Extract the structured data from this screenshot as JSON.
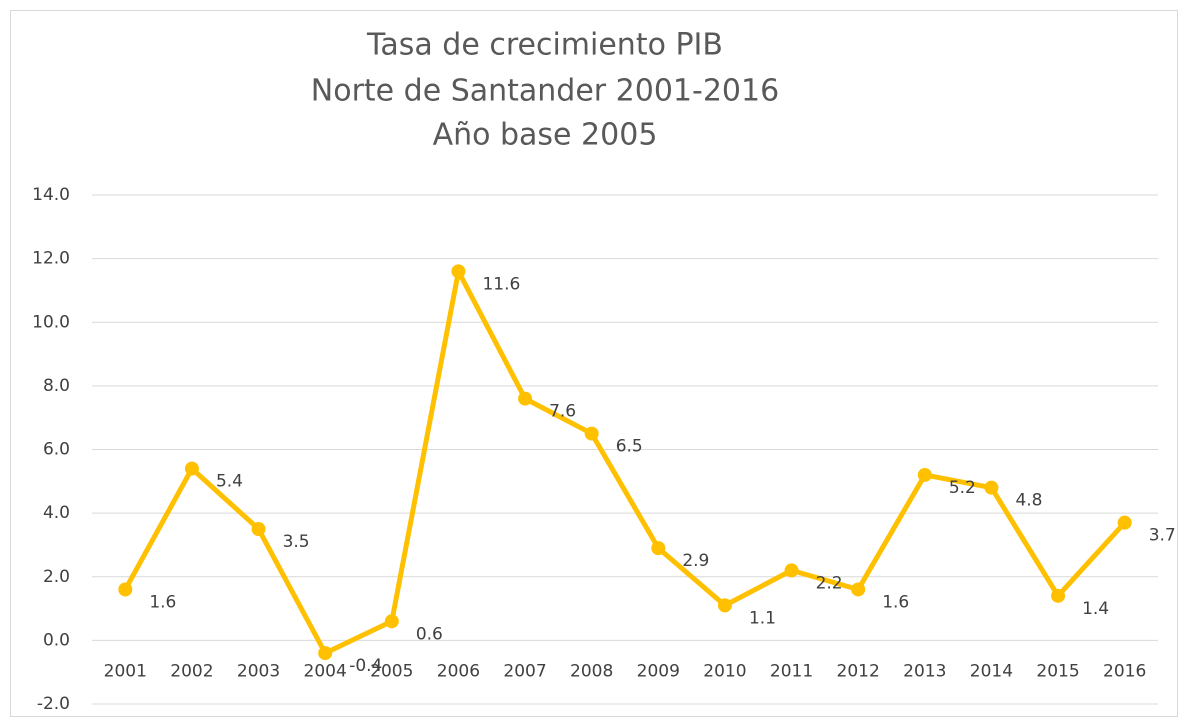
{
  "chart_data": {
    "type": "line",
    "title": [
      "Tasa de crecimiento PIB",
      "Norte de Santander 2001-2016",
      "Año base 2005"
    ],
    "categories": [
      "2001",
      "2002",
      "2003",
      "2004",
      "2005",
      "2006",
      "2007",
      "2008",
      "2009",
      "2010",
      "2011",
      "2012",
      "2013",
      "2014",
      "2015",
      "2016"
    ],
    "values": [
      1.6,
      5.4,
      3.5,
      -0.4,
      0.6,
      11.6,
      7.6,
      6.5,
      2.9,
      1.1,
      2.2,
      1.6,
      5.2,
      4.8,
      1.4,
      3.7
    ],
    "color": "#ffc000",
    "ylim": [
      -2,
      14
    ],
    "yticks": [
      {
        "value": -2,
        "label": "-2.0"
      },
      {
        "value": 0,
        "label": "0.0"
      },
      {
        "value": 2,
        "label": "2.0"
      },
      {
        "value": 4,
        "label": "4.0"
      },
      {
        "value": 6,
        "label": "6.0"
      },
      {
        "value": 8,
        "label": "8.0"
      },
      {
        "value": 10,
        "label": "10.0"
      },
      {
        "value": 12,
        "label": "12.0"
      },
      {
        "value": 14,
        "label": "14.0"
      }
    ],
    "grid": true
  }
}
